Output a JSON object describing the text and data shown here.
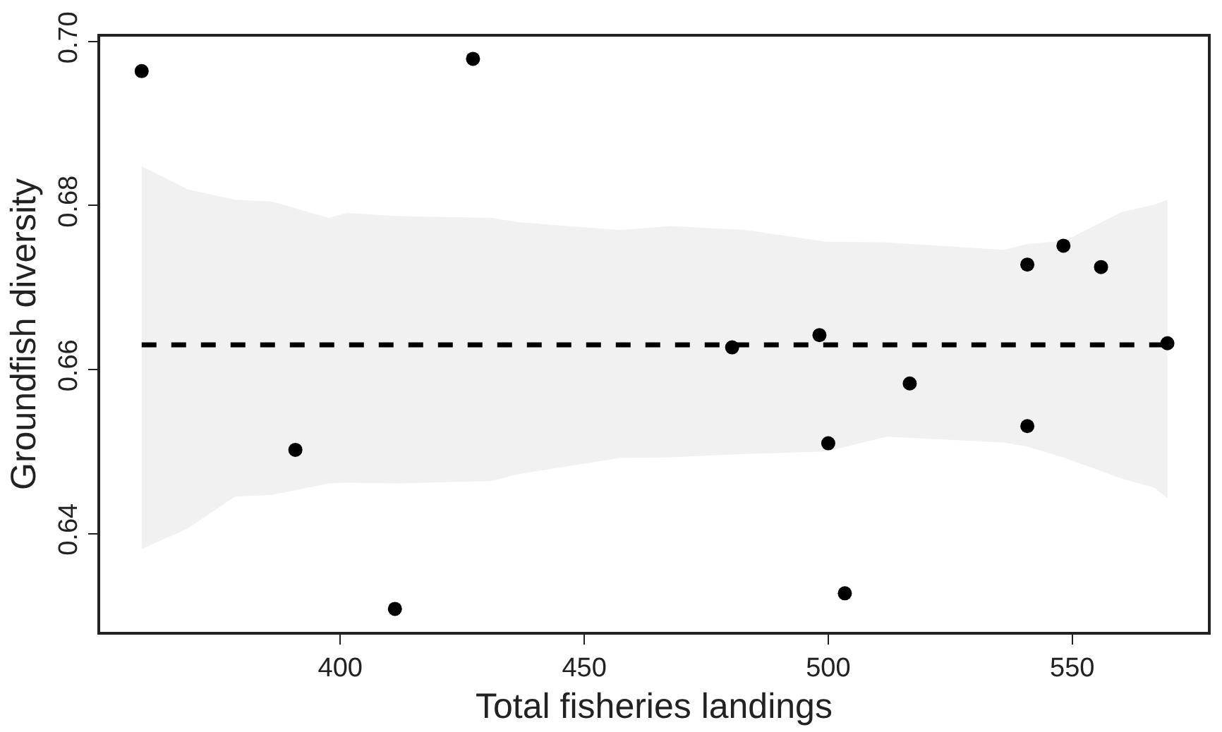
{
  "chart_data": {
    "type": "scatter",
    "xlabel": "Total fisheries landings",
    "ylabel": "Groundfish diversity",
    "xlim": [
      350.8,
      577.8
    ],
    "ylim": [
      0.628,
      0.7006
    ],
    "xticks": [
      400,
      450,
      500,
      550
    ],
    "yticks": [
      {
        "value": 0.64,
        "label": "0.64"
      },
      {
        "value": 0.66,
        "label": "0.66"
      },
      {
        "value": 0.68,
        "label": "0.68"
      },
      {
        "value": 0.7,
        "label": "0.70"
      }
    ],
    "marker": "circle",
    "series": [
      {
        "type": "line",
        "color": "#000000",
        "line_style": "dashed",
        "marker": "none",
        "x": [
          359.3,
          368.7,
          378.4,
          386.0,
          397.6,
          401.4,
          412.0,
          431.2,
          436.1,
          457.2,
          467.8,
          483.2,
          499.5,
          512.0,
          536.0,
          540.8,
          548.5,
          560.1,
          566.8,
          569.5
        ],
        "values": [
          0.663,
          0.663,
          0.663,
          0.663,
          0.663,
          0.663,
          0.663,
          0.663,
          0.663,
          0.663,
          0.663,
          0.663,
          0.663,
          0.663,
          0.663,
          0.663,
          0.663,
          0.663,
          0.663,
          0.663
        ],
        "upper": [
          0.6848,
          0.682,
          0.6807,
          0.6805,
          0.6785,
          0.6791,
          0.6787,
          0.6785,
          0.678,
          0.677,
          0.6775,
          0.677,
          0.6756,
          0.6755,
          0.6746,
          0.6753,
          0.6757,
          0.6792,
          0.6801,
          0.6807
        ],
        "lower": [
          0.6381,
          0.6406,
          0.6445,
          0.6447,
          0.6461,
          0.6462,
          0.6461,
          0.6464,
          0.6472,
          0.6492,
          0.6493,
          0.6497,
          0.65,
          0.6518,
          0.6511,
          0.6506,
          0.6492,
          0.6467,
          0.6456,
          0.6443
        ]
      },
      {
        "type": "scatter",
        "color": "#000000",
        "x": [
          359.3,
          427.2,
          390.8,
          411.2,
          480.3,
          498.2,
          500.0,
          503.4,
          516.7,
          540.8,
          540.8,
          548.2,
          555.9,
          569.5
        ],
        "values": [
          0.6964,
          0.6979,
          0.6502,
          0.6308,
          0.6627,
          0.6642,
          0.651,
          0.6327,
          0.6583,
          0.6728,
          0.6531,
          0.6751,
          0.6725,
          0.6632
        ]
      }
    ]
  }
}
